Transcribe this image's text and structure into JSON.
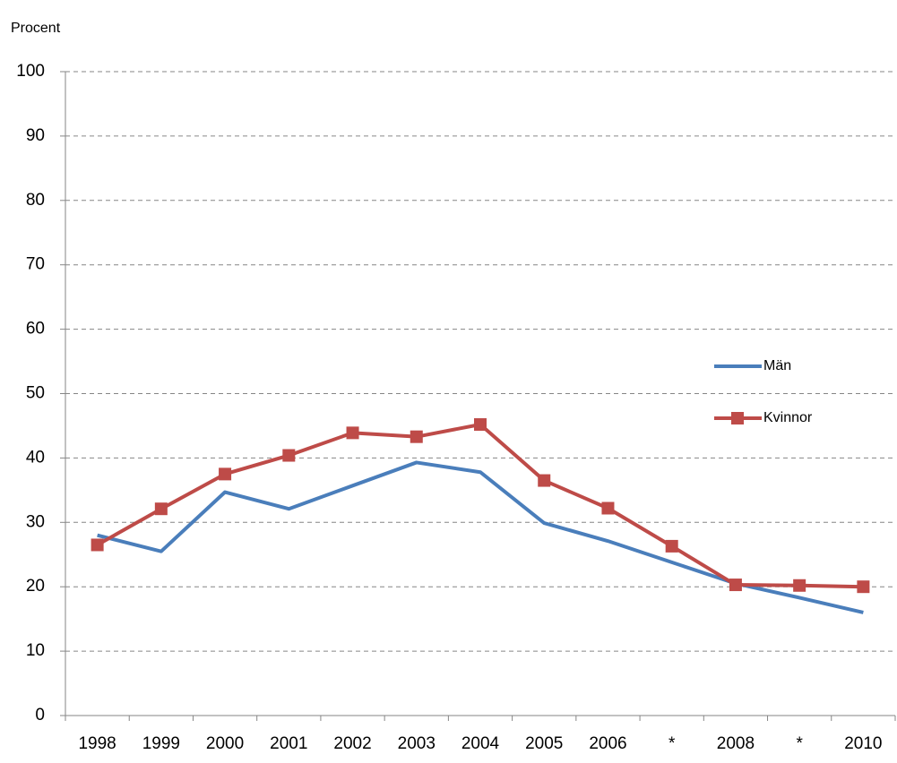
{
  "chart_data": {
    "type": "line",
    "y_label": "Procent",
    "categories": [
      "1998",
      "1999",
      "2000",
      "2001",
      "2002",
      "2003",
      "2004",
      "2005",
      "2006",
      "*",
      "2008",
      "*",
      "2010"
    ],
    "series": [
      {
        "name": "Män",
        "color": "#4a7ebb",
        "marker": "none",
        "values": [
          28.0,
          25.5,
          34.7,
          32.1,
          35.7,
          39.3,
          37.8,
          29.9,
          27.1,
          23.8,
          20.5,
          18.3,
          16.0
        ]
      },
      {
        "name": "Kvinnor",
        "color": "#be4b48",
        "marker": "square",
        "values": [
          26.5,
          32.1,
          37.5,
          40.4,
          43.9,
          43.3,
          45.2,
          36.5,
          32.2,
          26.3,
          20.3,
          20.2,
          20.0
        ]
      }
    ],
    "ylim": [
      0,
      100
    ],
    "yticks": [
      0,
      10,
      20,
      30,
      40,
      50,
      60,
      70,
      80,
      90,
      100
    ],
    "grid": true,
    "legend": "right"
  }
}
